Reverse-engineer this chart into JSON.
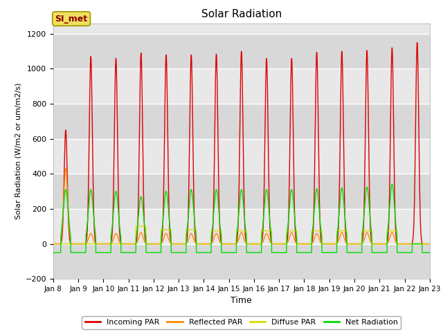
{
  "title": "Solar Radiation",
  "xlabel": "Time",
  "ylabel": "Solar Radiation (W/m2 or um/m2/s)",
  "ylim": [
    -200,
    1260
  ],
  "yticks": [
    -200,
    0,
    200,
    400,
    600,
    800,
    1000,
    1200
  ],
  "plot_bg": "#e8e8e8",
  "line_colors": {
    "incoming": "#dd0000",
    "reflected": "#ff8800",
    "diffuse": "#dddd00",
    "net": "#00dd00"
  },
  "legend_label": "SI_met",
  "legend_entries": [
    "Incoming PAR",
    "Reflected PAR",
    "Diffuse PAR",
    "Net Radiation"
  ],
  "x_tick_labels": [
    "Jan 8",
    "Jan 9",
    "Jan 10",
    "Jan 11",
    "Jan 12",
    "Jan 13",
    "Jan 14",
    "Jan 15",
    "Jan 16",
    "Jan 17",
    "Jan 18",
    "Jan 19",
    "Jan 20",
    "Jan 21",
    "Jan 22",
    "Jan 23"
  ],
  "n_days": 15,
  "points_per_day": 144,
  "night_net": -50,
  "day_patterns_incoming": [
    650,
    1070,
    1060,
    1090,
    1080,
    1080,
    1085,
    1100,
    1060,
    1060,
    1095,
    1100,
    1105,
    1120,
    1150
  ],
  "day_patterns_reflected": [
    430,
    60,
    60,
    65,
    60,
    60,
    60,
    65,
    60,
    65,
    60,
    65,
    65,
    65,
    0
  ],
  "diffuse_flat": [
    0,
    0,
    0,
    100,
    80,
    80,
    75,
    75,
    75,
    75,
    75,
    75,
    75,
    75,
    0
  ],
  "net_peaks": [
    310,
    310,
    300,
    270,
    300,
    310,
    310,
    310,
    310,
    310,
    315,
    320,
    325,
    340,
    0
  ]
}
